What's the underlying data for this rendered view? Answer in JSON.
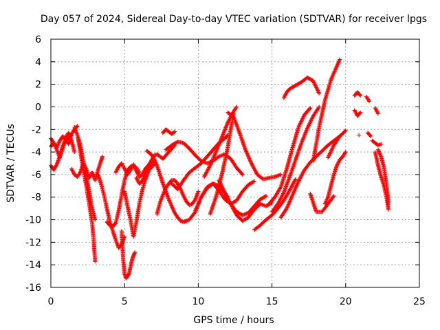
{
  "chart_data": {
    "type": "scatter",
    "title": "Day 057 of 2024, Sidereal Day-to-day VTEC variation (SDTVAR) for receiver lpgs",
    "xlabel": "GPS time / hours",
    "ylabel": "SDTVAR / TECUs",
    "xlim": [
      0,
      25
    ],
    "ylim": [
      -16,
      6
    ],
    "xticks": [
      "0",
      "5",
      "10",
      "15",
      "20",
      "25"
    ],
    "yticks": [
      "-16",
      "-14",
      "-12",
      "-10",
      "-8",
      "-6",
      "-4",
      "-2",
      "0",
      "2",
      "4",
      "6"
    ],
    "grid": true,
    "marker": "+",
    "color": "#ff0000",
    "series": [
      {
        "name": "s01",
        "x": [
          0.0,
          0.2,
          0.4,
          0.6,
          0.8,
          1.0,
          1.2,
          1.4,
          1.6,
          1.8
        ],
        "y": [
          -2.8,
          -3.2,
          -3.6,
          -3.0,
          -2.6,
          -2.9,
          -3.3,
          -2.4,
          -2.0,
          -1.7
        ]
      },
      {
        "name": "s02",
        "x": [
          0.0,
          0.2,
          0.4,
          0.6,
          0.8,
          1.0,
          1.2,
          1.4
        ],
        "y": [
          -5.2,
          -5.6,
          -5.1,
          -4.4,
          -3.5,
          -3.0,
          -2.7,
          -2.5
        ]
      },
      {
        "name": "s03",
        "x": [
          0.0,
          0.2,
          0.4,
          0.6,
          0.8,
          1.0,
          1.2,
          1.4,
          1.6
        ],
        "y": [
          -3.5,
          -3.2,
          -3.8,
          -4.5,
          -3.7,
          -2.7,
          -2.3,
          -3.0,
          -4.0
        ]
      },
      {
        "name": "s04",
        "x": [
          1.6,
          1.8,
          2.0,
          2.2,
          2.4,
          2.6,
          2.8,
          3.0
        ],
        "y": [
          -1.8,
          -2.5,
          -3.4,
          -4.8,
          -6.0,
          -7.5,
          -9.0,
          -10.0
        ]
      },
      {
        "name": "s05",
        "x": [
          1.8,
          2.0,
          2.2,
          2.4,
          2.6,
          2.8,
          2.9,
          3.0
        ],
        "y": [
          -2.5,
          -4.0,
          -5.5,
          -7.0,
          -8.6,
          -10.3,
          -11.8,
          -13.7
        ]
      },
      {
        "name": "s06",
        "x": [
          1.4,
          1.6,
          1.8,
          2.0,
          2.2,
          2.4,
          2.6,
          2.8,
          3.0,
          3.2,
          3.4,
          3.5
        ],
        "y": [
          -5.5,
          -6.0,
          -6.2,
          -5.8,
          -5.0,
          -5.5,
          -6.3,
          -5.8,
          -6.5,
          -5.6,
          -4.8,
          -4.4
        ]
      },
      {
        "name": "s07",
        "x": [
          3.2,
          3.4,
          3.6,
          3.8,
          4.0,
          4.2,
          4.4,
          4.6,
          4.8,
          5.0
        ],
        "y": [
          -6.0,
          -6.8,
          -7.8,
          -9.0,
          -10.2,
          -11.0,
          -11.8,
          -12.5,
          -12.2,
          -11.5
        ]
      },
      {
        "name": "s08",
        "x": [
          3.8,
          4.0,
          4.2,
          4.4,
          4.6,
          4.8,
          5.0,
          5.2,
          5.4,
          5.6,
          5.8,
          6.0
        ],
        "y": [
          -10.2,
          -10.5,
          -10.6,
          -10.3,
          -9.2,
          -7.8,
          -6.5,
          -5.6,
          -5.3,
          -5.2,
          -5.4,
          -5.8
        ]
      },
      {
        "name": "s09",
        "x": [
          4.4,
          4.6,
          4.8,
          5.0,
          5.2,
          5.4,
          5.6,
          5.8,
          6.0,
          6.2,
          6.4,
          6.6,
          6.8,
          7.0
        ],
        "y": [
          -5.8,
          -5.3,
          -5.0,
          -5.5,
          -6.0,
          -5.6,
          -5.1,
          -5.7,
          -6.2,
          -6.0,
          -5.5,
          -5.2,
          -5.4,
          -5.1
        ]
      },
      {
        "name": "s10",
        "x": [
          4.8,
          4.9,
          5.0,
          5.1,
          5.2,
          5.3,
          5.4,
          5.5,
          5.6,
          5.7
        ],
        "y": [
          -11.0,
          -13.5,
          -14.8,
          -15.2,
          -15.0,
          -14.8,
          -14.2,
          -13.6,
          -13.2,
          -12.9
        ]
      },
      {
        "name": "s11",
        "x": [
          5.0,
          5.2,
          5.4,
          5.6,
          5.8,
          6.0,
          6.2,
          6.4,
          6.6,
          6.8,
          7.0
        ],
        "y": [
          -7.5,
          -8.8,
          -10.0,
          -11.5,
          -10.2,
          -8.6,
          -7.4,
          -6.5,
          -5.8,
          -5.2,
          -4.8
        ]
      },
      {
        "name": "s12",
        "x": [
          5.8,
          6.0,
          6.2,
          6.4,
          6.6,
          6.8,
          7.0,
          7.2,
          7.4,
          7.6,
          7.8,
          8.0,
          8.2,
          8.4
        ],
        "y": [
          -6.3,
          -6.8,
          -6.6,
          -5.9,
          -5.2,
          -4.8,
          -4.3,
          -4.2,
          -4.4,
          -4.6,
          -4.3,
          -4.0,
          -3.7,
          -3.4
        ]
      },
      {
        "name": "s13",
        "x": [
          6.5,
          6.8,
          7.0,
          7.2,
          7.4,
          7.6,
          7.8,
          8.0,
          8.2,
          8.4,
          8.6,
          8.8,
          9.0,
          9.2
        ],
        "y": [
          -3.9,
          -4.2,
          -4.6,
          -5.2,
          -6.0,
          -6.8,
          -7.5,
          -8.2,
          -8.8,
          -9.4,
          -9.8,
          -10.1,
          -10.2,
          -10.1
        ]
      },
      {
        "name": "s14",
        "x": [
          7.6,
          7.8,
          8.0,
          8.2,
          8.4
        ],
        "y": [
          -2.3,
          -2.0,
          -2.2,
          -2.4,
          -2.2
        ]
      },
      {
        "name": "s15",
        "x": [
          7.2,
          7.4,
          7.6,
          7.8,
          8.0,
          8.2,
          8.4,
          8.6,
          8.8,
          9.0,
          9.2,
          9.4,
          9.6,
          9.8,
          10.0
        ],
        "y": [
          -9.5,
          -8.5,
          -7.8,
          -7.2,
          -6.8,
          -6.5,
          -6.5,
          -6.8,
          -7.3,
          -7.9,
          -8.4,
          -8.7,
          -8.6,
          -8.2,
          -7.5
        ]
      },
      {
        "name": "s16",
        "x": [
          7.8,
          8.2,
          8.6,
          9.0,
          9.4,
          9.8,
          10.2,
          10.6,
          11.0,
          11.4,
          11.8,
          12.2,
          12.6,
          13.0
        ],
        "y": [
          -3.8,
          -3.4,
          -3.1,
          -3.2,
          -3.7,
          -4.3,
          -4.8,
          -5.0,
          -4.8,
          -4.4,
          -4.2,
          -4.6,
          -5.4,
          -6.0
        ]
      },
      {
        "name": "s17",
        "x": [
          8.2,
          8.6,
          9.0,
          9.4,
          9.8,
          10.2,
          10.6,
          11.0,
          11.4,
          11.8,
          12.0
        ],
        "y": [
          -6.8,
          -7.3,
          -6.5,
          -5.8,
          -5.4,
          -5.0,
          -4.4,
          -3.8,
          -3.2,
          -2.8,
          -2.5
        ]
      },
      {
        "name": "s18",
        "x": [
          9.0,
          9.4,
          9.8,
          10.2,
          10.6,
          11.0,
          11.4,
          11.8,
          12.0
        ],
        "y": [
          -10.2,
          -10.0,
          -9.3,
          -8.0,
          -7.1,
          -6.8,
          -7.0,
          -7.6,
          -8.0
        ]
      },
      {
        "name": "s19",
        "x": [
          9.8,
          10.2,
          10.6,
          11.0,
          11.4,
          11.8,
          12.2,
          12.6,
          13.0,
          13.4,
          13.8
        ],
        "y": [
          -9.2,
          -8.0,
          -7.2,
          -6.8,
          -7.4,
          -8.2,
          -8.6,
          -8.3,
          -7.5,
          -6.9,
          -6.6
        ]
      },
      {
        "name": "s20",
        "x": [
          10.4,
          10.8,
          11.2,
          11.6,
          12.0,
          12.4,
          12.6
        ],
        "y": [
          -6.2,
          -5.2,
          -4.0,
          -2.7,
          -1.4,
          -0.4,
          0.0
        ]
      },
      {
        "name": "s21",
        "x": [
          10.8,
          11.2,
          11.6,
          12.0,
          12.2,
          12.4
        ],
        "y": [
          -9.5,
          -8.0,
          -6.0,
          -3.6,
          -2.0,
          -0.6
        ]
      },
      {
        "name": "s22",
        "x": [
          11.4,
          11.8,
          12.2,
          12.6,
          13.0,
          13.4,
          13.8,
          14.2,
          14.6
        ],
        "y": [
          -6.5,
          -7.6,
          -8.6,
          -9.3,
          -9.6,
          -9.4,
          -8.8,
          -8.2,
          -7.9
        ]
      },
      {
        "name": "s23",
        "x": [
          11.8,
          12.2,
          12.6,
          13.0,
          13.4,
          13.8,
          14.2,
          14.6,
          15.0
        ],
        "y": [
          -7.8,
          -8.6,
          -9.6,
          -10.1,
          -9.8,
          -9.1,
          -8.6,
          -8.8,
          -8.5
        ]
      },
      {
        "name": "s24",
        "x": [
          12.0,
          12.4,
          12.8,
          13.2,
          13.6,
          14.0,
          14.4,
          14.8,
          15.2,
          15.6
        ],
        "y": [
          -0.5,
          -0.9,
          -2.3,
          -3.8,
          -5.0,
          -6.0,
          -6.4,
          -6.3,
          -6.2,
          -6.0
        ]
      },
      {
        "name": "s25",
        "x": [
          13.8,
          14.2,
          14.6,
          15.0,
          15.4,
          15.8,
          16.2,
          16.6
        ],
        "y": [
          -10.9,
          -10.5,
          -10.0,
          -9.6,
          -9.0,
          -8.3,
          -7.4,
          -6.4
        ]
      },
      {
        "name": "s26",
        "x": [
          15.0,
          15.4,
          15.8,
          16.2,
          16.6,
          17.0,
          17.4,
          17.8,
          18.2
        ],
        "y": [
          -9.3,
          -8.6,
          -7.6,
          -6.2,
          -4.7,
          -3.2,
          -1.9,
          -0.8,
          0.0
        ]
      },
      {
        "name": "s27",
        "x": [
          14.8,
          15.2,
          15.6,
          16.0,
          16.4,
          16.8,
          17.2,
          17.6
        ],
        "y": [
          -8.6,
          -8.0,
          -7.1,
          -5.5,
          -3.6,
          -1.8,
          -0.7,
          -0.1
        ]
      },
      {
        "name": "s28",
        "x": [
          15.6,
          16.0,
          16.4,
          16.8,
          17.2,
          17.6,
          18.0,
          18.4,
          18.8,
          19.2,
          19.6
        ],
        "y": [
          -9.8,
          -9.0,
          -7.8,
          -6.6,
          -5.6,
          -4.9,
          -4.4,
          -3.9,
          -3.4,
          -3.0,
          -2.6
        ]
      },
      {
        "name": "s29",
        "x": [
          15.8,
          16.0,
          16.2,
          16.6,
          17.0,
          17.4,
          17.8,
          18.2
        ],
        "y": [
          0.8,
          1.3,
          1.6,
          1.9,
          2.2,
          2.6,
          2.3,
          1.2
        ]
      },
      {
        "name": "s30",
        "x": [
          17.6,
          17.8,
          18.0,
          18.4,
          18.8,
          19.2
        ],
        "y": [
          -7.7,
          -8.5,
          -9.3,
          -9.3,
          -8.6,
          -7.9
        ]
      },
      {
        "name": "s31",
        "x": [
          18.6,
          18.8,
          19.0,
          19.2,
          19.4,
          19.6,
          19.8,
          20.0
        ],
        "y": [
          -8.6,
          -8.0,
          -7.0,
          -6.0,
          -5.2,
          -4.7,
          -4.4,
          -4.0
        ]
      },
      {
        "name": "s32",
        "x": [
          17.8,
          18.2,
          18.6,
          19.0,
          19.4,
          19.6
        ],
        "y": [
          -4.8,
          -1.8,
          0.6,
          2.4,
          3.6,
          4.2
        ]
      },
      {
        "name": "s33",
        "x": [
          18.8,
          19.2,
          19.6,
          20.0
        ],
        "y": [
          -4.5,
          -3.4,
          -2.6,
          -2.1
        ]
      },
      {
        "name": "s34",
        "x": [
          20.6,
          20.8,
          21.0
        ],
        "y": [
          1.0,
          1.3,
          1.0
        ]
      },
      {
        "name": "s35",
        "x": [
          20.6,
          20.8,
          21.0
        ],
        "y": [
          -0.3,
          -0.8,
          -0.5
        ]
      },
      {
        "name": "s36",
        "x": [
          21.4,
          21.6
        ],
        "y": [
          0.9,
          0.5
        ]
      },
      {
        "name": "s37",
        "x": [
          21.5,
          21.7
        ],
        "y": [
          -2.3,
          -2.6
        ]
      },
      {
        "name": "s38",
        "x": [
          20.9
        ],
        "y": [
          -2.5
        ]
      },
      {
        "name": "s39",
        "x": [
          22.0,
          22.2
        ],
        "y": [
          -0.1,
          -0.6
        ]
      },
      {
        "name": "s40",
        "x": [
          21.8,
          22.0,
          22.2,
          22.4
        ],
        "y": [
          -3.0,
          -3.2,
          -3.4,
          -3.3
        ]
      },
      {
        "name": "s41",
        "x": [
          22.0,
          22.2,
          22.4,
          22.6,
          22.8,
          22.9
        ],
        "y": [
          -4.0,
          -5.2,
          -6.2,
          -7.0,
          -8.2,
          -9.1
        ]
      },
      {
        "name": "s42",
        "x": [
          22.2,
          22.4,
          22.6,
          22.8,
          22.9
        ],
        "y": [
          -3.8,
          -4.4,
          -5.4,
          -7.2,
          -8.5
        ]
      }
    ]
  }
}
